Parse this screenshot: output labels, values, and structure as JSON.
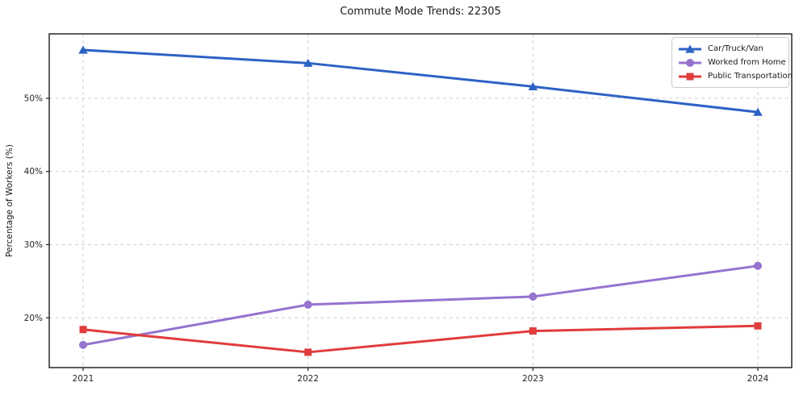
{
  "page": {
    "title": "Commute Mode Trends: 22305"
  },
  "chart_data": {
    "type": "line",
    "title": "Commute Mode Trends: 22305",
    "xlabel": "",
    "ylabel": "Percentage of Workers (%)",
    "categories": [
      "2021",
      "2022",
      "2023",
      "2024"
    ],
    "y_ticks": [
      20,
      30,
      40,
      50
    ],
    "y_tick_labels": [
      "20%",
      "30%",
      "40%",
      "50%"
    ],
    "ylim": [
      13.2,
      58.8
    ],
    "grid": true,
    "grid_style": "dashed",
    "legend_position": "upper right",
    "series": [
      {
        "name": "Car/Truck/Van",
        "color": "#2d62c5",
        "marker": "triangle",
        "values": [
          56.6,
          54.8,
          51.6,
          48.1
        ]
      },
      {
        "name": "Worked from Home",
        "color": "#9673cf",
        "marker": "circle",
        "values": [
          16.3,
          21.8,
          22.9,
          27.1
        ]
      },
      {
        "name": "Public Transportation",
        "color": "#e03c3c",
        "marker": "square",
        "values": [
          18.4,
          15.3,
          18.2,
          18.9
        ]
      }
    ]
  }
}
